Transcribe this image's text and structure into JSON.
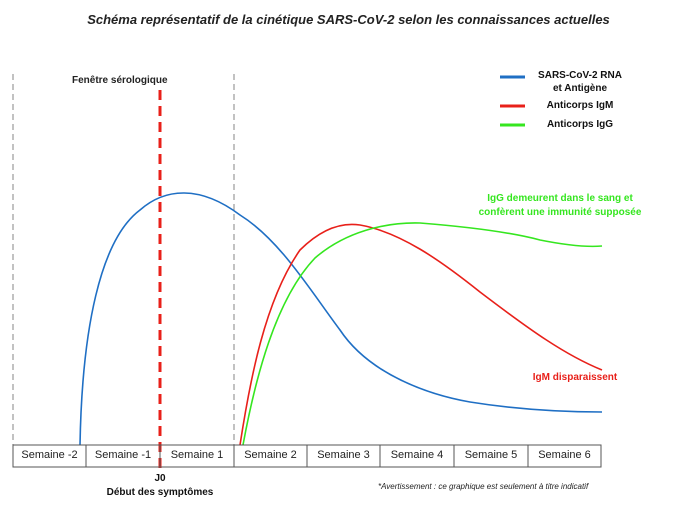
{
  "title": "Schéma représentatif de la cinétique SARS-CoV-2 selon les connaissances actuelles",
  "serology_window_label": "Fenêtre sérologique",
  "legend": {
    "rna": {
      "line1": "SARS-CoV-2 RNA",
      "line2": "et Antigène",
      "color": "#1f6fc4"
    },
    "igm": {
      "label": "Anticorps IgM",
      "color": "#e8201a"
    },
    "igg": {
      "label": "Anticorps IgG",
      "color": "#35e61f"
    }
  },
  "annotations": {
    "igg": {
      "line1": "IgG demeurent dans le sang et",
      "line2": "confèrent une immunité supposée"
    },
    "igm": "IgM disparaissent"
  },
  "weeks": [
    "Semaine -2",
    "Semaine -1",
    "Semaine 1",
    "Semaine 2",
    "Semaine 3",
    "Semaine 4",
    "Semaine 5",
    "Semaine 6"
  ],
  "j0_label": "J0",
  "symptom_onset_label": "Début des symptômes",
  "disclaimer": "*Avertissement : ce graphique est seulement à titre indicatif",
  "colors": {
    "onset_line": "#e8201a",
    "dashed_gray": "#999999",
    "axis": "#555555"
  }
}
